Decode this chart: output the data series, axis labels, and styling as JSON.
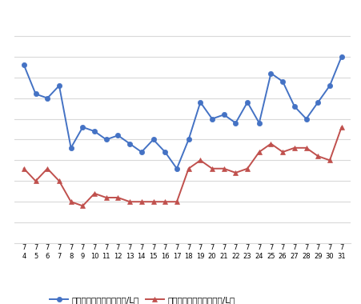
{
  "x_vals": [
    4,
    5,
    6,
    7,
    8,
    9,
    10,
    11,
    12,
    13,
    14,
    15,
    16,
    17,
    18,
    19,
    20,
    21,
    22,
    23,
    24,
    25,
    26,
    27,
    28,
    29,
    30,
    31
  ],
  "blue_vals": [
    183,
    176,
    175,
    178,
    163,
    168,
    167,
    165,
    166,
    164,
    162,
    165,
    162,
    158,
    165,
    174,
    170,
    171,
    169,
    174,
    169,
    181,
    179,
    173,
    170,
    174,
    178,
    185
  ],
  "red_vals": [
    158,
    155,
    158,
    155,
    150,
    149,
    152,
    151,
    151,
    150,
    150,
    150,
    150,
    150,
    158,
    160,
    158,
    158,
    157,
    158,
    162,
    164,
    162,
    163,
    163,
    161,
    160,
    168
  ],
  "blue_color": "#4472C4",
  "red_color": "#C0504D",
  "blue_label": "レギュラー看板価格（円/L）",
  "red_label": "レギュラー実売価格（円/L）",
  "ylim_min": 140,
  "ylim_max": 195,
  "yticks": [
    145,
    150,
    155,
    160,
    165,
    170,
    175,
    180,
    185,
    190
  ],
  "grid_color": "#D9D9D9",
  "bg_color": "#FFFFFF",
  "line_width": 1.4,
  "marker_size": 4.5
}
